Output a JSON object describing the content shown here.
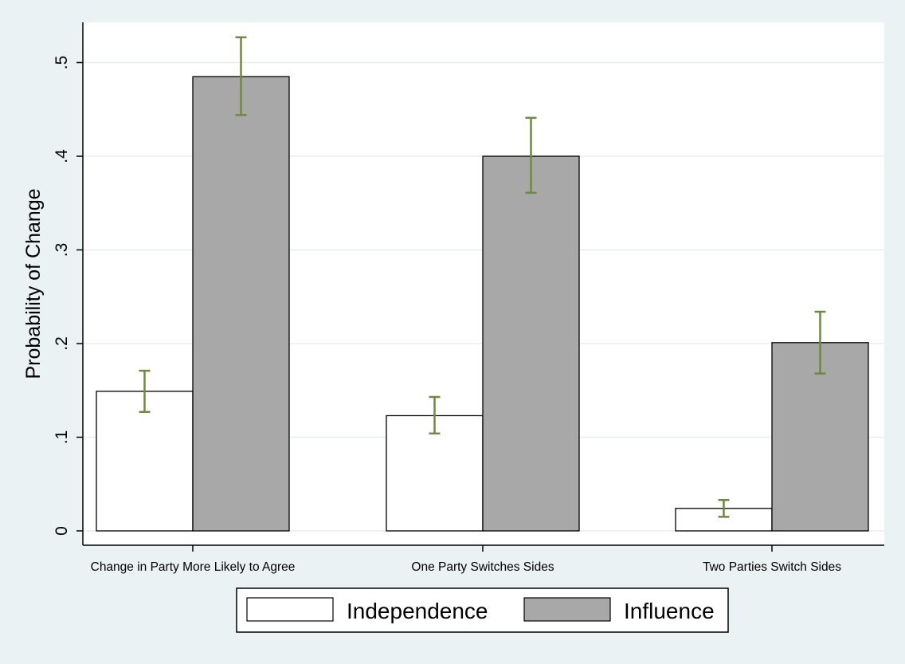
{
  "chart_data": {
    "type": "bar",
    "title": "",
    "xlabel": "",
    "ylabel": "Probability of Change",
    "ylim": [
      0,
      0.5
    ],
    "yticks": [
      0,
      0.1,
      0.2,
      0.3,
      0.4,
      0.5
    ],
    "ytick_labels": [
      "0",
      ".1",
      ".2",
      ".3",
      ".4",
      ".5"
    ],
    "categories": [
      "Change in Party More Likely to Agree",
      "One Party Switches Sides",
      "Two Parties Switch Sides"
    ],
    "series": [
      {
        "name": "Independence",
        "color": "#ffffff",
        "values": [
          0.149,
          0.123,
          0.024
        ],
        "ci_low": [
          0.127,
          0.104,
          0.015
        ],
        "ci_high": [
          0.171,
          0.143,
          0.033
        ]
      },
      {
        "name": "Influence",
        "color": "#a8a8a8",
        "values": [
          0.485,
          0.4,
          0.201
        ],
        "ci_low": [
          0.444,
          0.361,
          0.168
        ],
        "ci_high": [
          0.527,
          0.441,
          0.234
        ]
      }
    ],
    "errorbar_color": "#6e8a3c",
    "grid": true,
    "legend_position": "bottom"
  }
}
